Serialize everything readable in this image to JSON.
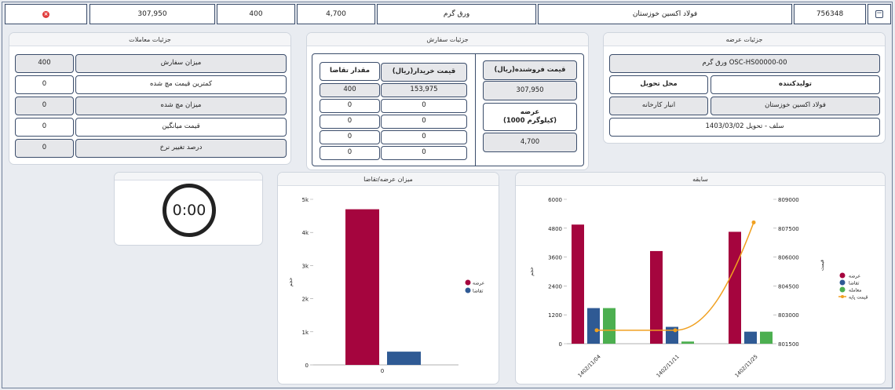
{
  "top_row": {
    "change": "307,950",
    "volume": "400",
    "price": "4,700",
    "product": "ورق گرم",
    "producer": "فولاد اکسین خوزستان",
    "code": "756348"
  },
  "offer_details": {
    "title": "جزئیات عرضه",
    "product_code": "ورق گرم OSC-HS00000-00",
    "producer_label": "تولیدکننده",
    "delivery_label": "محل تحویل",
    "producer_value": "فولاد اکسین خوزستان",
    "delivery_value": "انبار کارخانه",
    "delivery_date": "سلف - تحویل 1403/03/02"
  },
  "order_details": {
    "title": "جزئیات سفارش",
    "seller_price_label": "قیمت فروشنده(ریال)",
    "seller_price": "307,950",
    "supply_label": "عرضه\n(1000 کیلوگرم)",
    "supply_value": "4,700",
    "buyer_price_label": "قیمت خریدار(ریال)",
    "demand_label": "مقدار تقاضا",
    "rows": [
      {
        "price": "153,975",
        "qty": "400"
      },
      {
        "price": "0",
        "qty": "0"
      },
      {
        "price": "0",
        "qty": "0"
      },
      {
        "price": "0",
        "qty": "0"
      },
      {
        "price": "0",
        "qty": "0"
      }
    ]
  },
  "trade_details": {
    "title": "جزئیات معاملات",
    "rows": [
      {
        "label": "میزان سفارش",
        "value": "400"
      },
      {
        "label": "کمترین قیمت مچ شده",
        "value": "0"
      },
      {
        "label": "میزان مچ شده",
        "value": "0"
      },
      {
        "label": "قیمت میانگین",
        "value": "0"
      },
      {
        "label": "درصد تغییر نرخ",
        "value": "0"
      }
    ]
  },
  "timer": {
    "value": "0:00"
  },
  "colors": {
    "supply": "#a5053e",
    "demand": "#2f5a94",
    "trade": "#4caf50",
    "base_price": "#f0a020"
  },
  "chart_data": [
    {
      "type": "bar",
      "title": "میزان عرضه/تقاضا",
      "categories": [
        "0"
      ],
      "ylabel": "حجم",
      "yticks": [
        "0",
        "1k",
        "2k",
        "3k",
        "4k",
        "5k"
      ],
      "ylim": [
        0,
        5000
      ],
      "series": [
        {
          "name": "عرضه",
          "values": [
            4700
          ]
        },
        {
          "name": "تقاضا",
          "values": [
            400
          ]
        }
      ],
      "legend": "right"
    },
    {
      "type": "bar",
      "title": "سابقه",
      "categories": [
        "1402/11/04",
        "1402/11/11",
        "1402/11/25"
      ],
      "ylabel": "حجم",
      "y2label": "قیمت",
      "yticks": [
        "0",
        "1200",
        "2400",
        "3600",
        "4800",
        "6000"
      ],
      "ylim": [
        0,
        6000
      ],
      "y2ticks": [
        "801500",
        "803000",
        "804500",
        "806000",
        "807500",
        "809000"
      ],
      "y2lim": [
        801500,
        809000
      ],
      "series": [
        {
          "name": "عرضه",
          "values": [
            4950,
            3850,
            4650
          ]
        },
        {
          "name": "تقاضا",
          "values": [
            1480,
            700,
            500
          ]
        },
        {
          "name": "معامله",
          "values": [
            1480,
            90,
            500
          ]
        },
        {
          "name": "قیمت پایه",
          "type": "line",
          "values": [
            802200,
            802200,
            807800
          ]
        }
      ],
      "legend": "right"
    }
  ]
}
